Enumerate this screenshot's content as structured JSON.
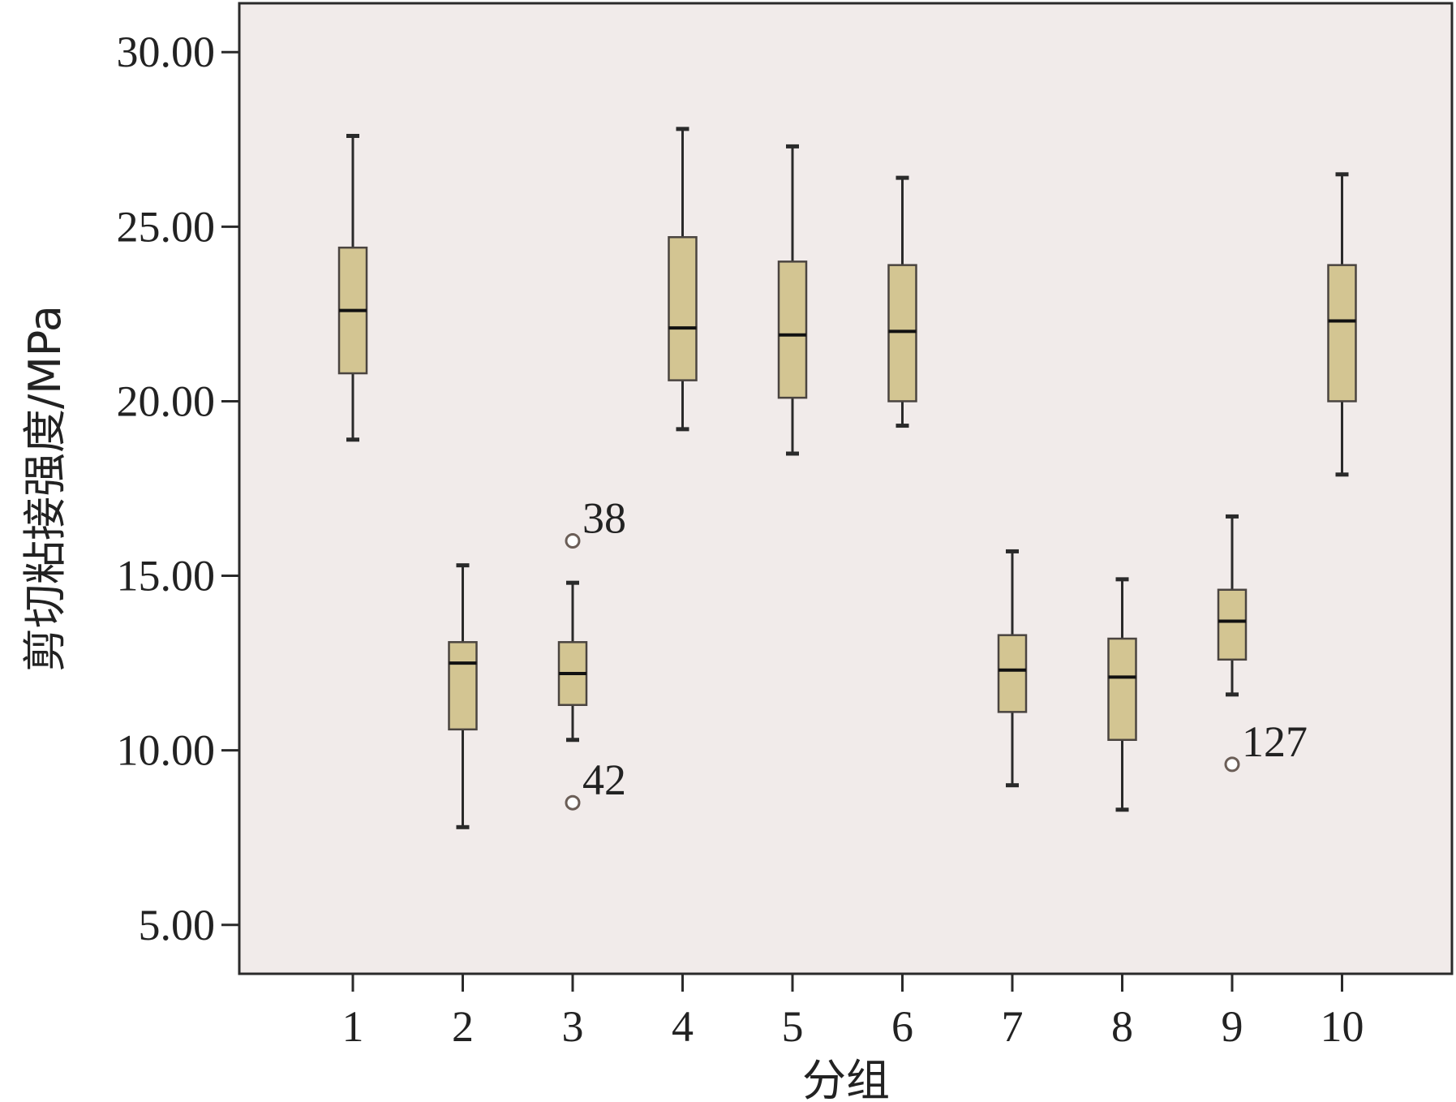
{
  "chart_data": {
    "type": "box",
    "xlabel": "分组",
    "ylabel": "剪切粘接强度/MPa",
    "ylim": [
      3.6,
      31.4
    ],
    "y_ticks": [
      "5.00",
      "10.00",
      "15.00",
      "20.00",
      "25.00",
      "30.00"
    ],
    "y_tick_values": [
      5,
      10,
      15,
      20,
      25,
      30
    ],
    "categories": [
      "1",
      "2",
      "3",
      "4",
      "5",
      "6",
      "7",
      "8",
      "9",
      "10"
    ],
    "boxes": [
      {
        "group": "1",
        "min": 18.9,
        "q1": 20.8,
        "median": 22.6,
        "q3": 24.4,
        "max": 27.6
      },
      {
        "group": "2",
        "min": 7.8,
        "q1": 10.6,
        "median": 12.5,
        "q3": 13.1,
        "max": 15.3
      },
      {
        "group": "3",
        "min": 10.3,
        "q1": 11.3,
        "median": 12.2,
        "q3": 13.1,
        "max": 14.8
      },
      {
        "group": "4",
        "min": 19.2,
        "q1": 20.6,
        "median": 22.1,
        "q3": 24.7,
        "max": 27.8
      },
      {
        "group": "5",
        "min": 18.5,
        "q1": 20.1,
        "median": 21.9,
        "q3": 24.0,
        "max": 27.3
      },
      {
        "group": "6",
        "min": 19.3,
        "q1": 20.0,
        "median": 22.0,
        "q3": 23.9,
        "max": 26.4
      },
      {
        "group": "7",
        "min": 9.0,
        "q1": 11.1,
        "median": 12.3,
        "q3": 13.3,
        "max": 15.7
      },
      {
        "group": "8",
        "min": 8.3,
        "q1": 10.3,
        "median": 12.1,
        "q3": 13.2,
        "max": 14.9
      },
      {
        "group": "9",
        "min": 11.6,
        "q1": 12.6,
        "median": 13.7,
        "q3": 14.6,
        "max": 16.7
      },
      {
        "group": "10",
        "min": 17.9,
        "q1": 20.0,
        "median": 22.3,
        "q3": 23.9,
        "max": 26.5
      }
    ],
    "outliers": [
      {
        "group": "3",
        "value": 16.0,
        "label": "38"
      },
      {
        "group": "3",
        "value": 8.5,
        "label": "42"
      },
      {
        "group": "9",
        "value": 9.6,
        "label": "127"
      }
    ],
    "grid": false,
    "colors": {
      "plot_background": "#f1ebea",
      "box_fill": "#d3c592",
      "line": "#2a2a2a",
      "outlier_stroke": "#6b5e57"
    }
  }
}
